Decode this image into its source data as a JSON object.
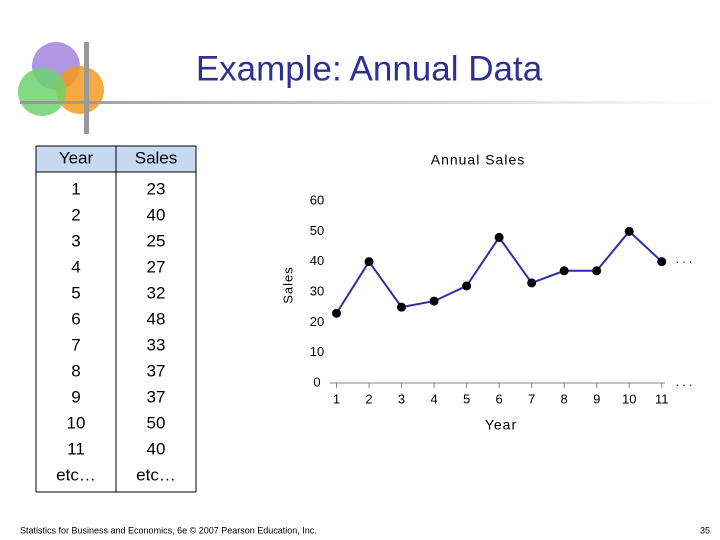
{
  "header": {
    "title": "Example: Annual Data"
  },
  "table": {
    "columns": [
      "Year",
      "Sales"
    ],
    "rows": [
      [
        "1",
        "23"
      ],
      [
        "2",
        "40"
      ],
      [
        "3",
        "25"
      ],
      [
        "4",
        "27"
      ],
      [
        "5",
        "32"
      ],
      [
        "6",
        "48"
      ],
      [
        "7",
        "33"
      ],
      [
        "8",
        "37"
      ],
      [
        "9",
        "37"
      ],
      [
        "10",
        "50"
      ],
      [
        "11",
        "40"
      ],
      [
        "etc…",
        "etc…"
      ]
    ]
  },
  "chart_data": {
    "type": "line",
    "title": "Annual Sales",
    "x_label": "Year",
    "y_label": "Sales",
    "x": [
      1,
      2,
      3,
      4,
      5,
      6,
      7,
      8,
      9,
      10,
      11
    ],
    "values": [
      23,
      40,
      25,
      27,
      32,
      48,
      33,
      37,
      37,
      50,
      40
    ],
    "color": "#2b2fa3",
    "marker_color": "#000000",
    "xlim": [
      0.8,
      11.1
    ],
    "xticks": [
      1,
      2,
      3,
      4,
      5,
      6,
      7,
      8,
      9,
      10,
      11
    ],
    "ylim": [
      0,
      60
    ],
    "yticks": [
      0,
      10,
      20,
      30,
      40,
      50,
      60
    ],
    "annotations": [
      ". . .",
      ". . ."
    ]
  },
  "footer": {
    "source": "Statistics for Business and Economics, 6e © 2007 Pearson Education, Inc.",
    "page": "35"
  }
}
